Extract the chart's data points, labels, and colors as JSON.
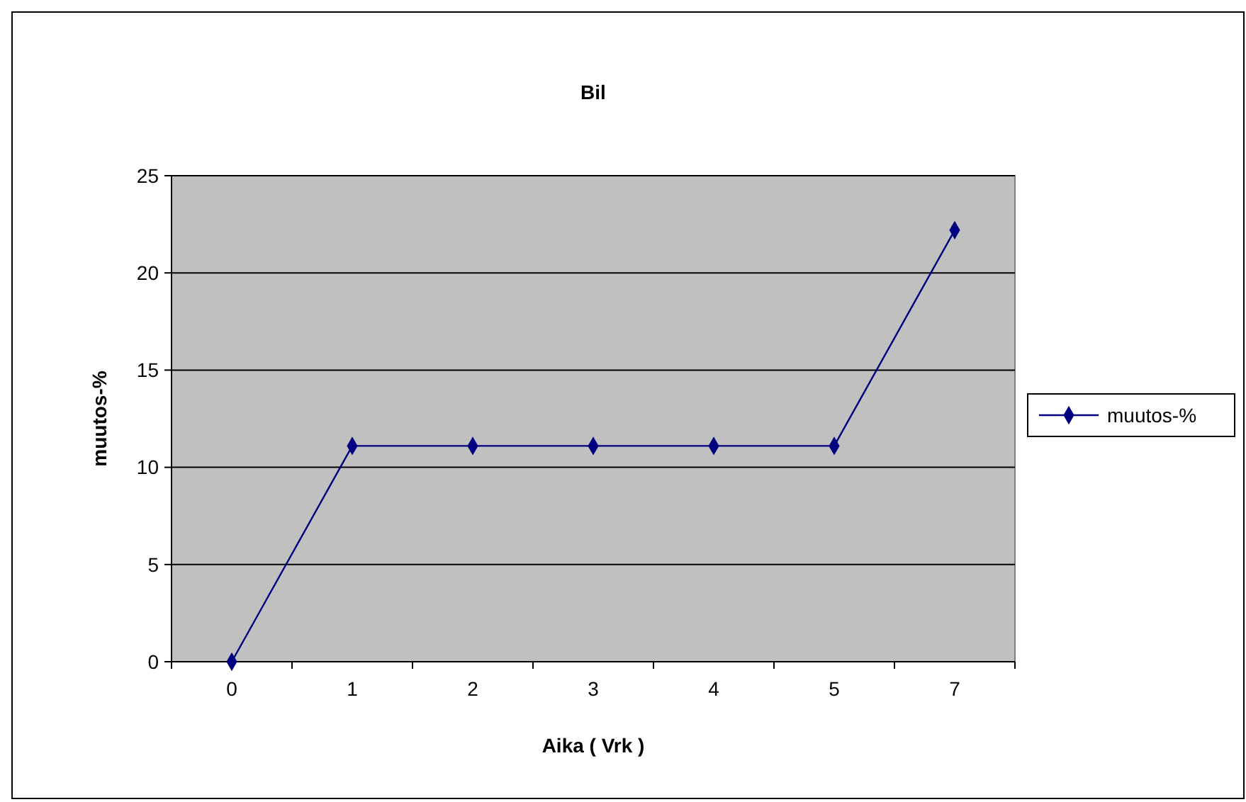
{
  "chart_data": {
    "type": "line",
    "title": "Bil",
    "xlabel": "Aika ( Vrk )",
    "ylabel": "muutos-%",
    "categories": [
      "0",
      "1",
      "2",
      "3",
      "4",
      "5",
      "7"
    ],
    "series": [
      {
        "name": "muutos-%",
        "color": "#000080",
        "values": [
          0,
          11.1,
          11.1,
          11.1,
          11.1,
          11.1,
          22.2
        ]
      }
    ],
    "ylim": [
      0,
      25
    ],
    "yticks": [
      0,
      5,
      10,
      15,
      20,
      25
    ],
    "grid": "y",
    "legend": "right",
    "marker": "diamond",
    "line_style": "solid"
  }
}
